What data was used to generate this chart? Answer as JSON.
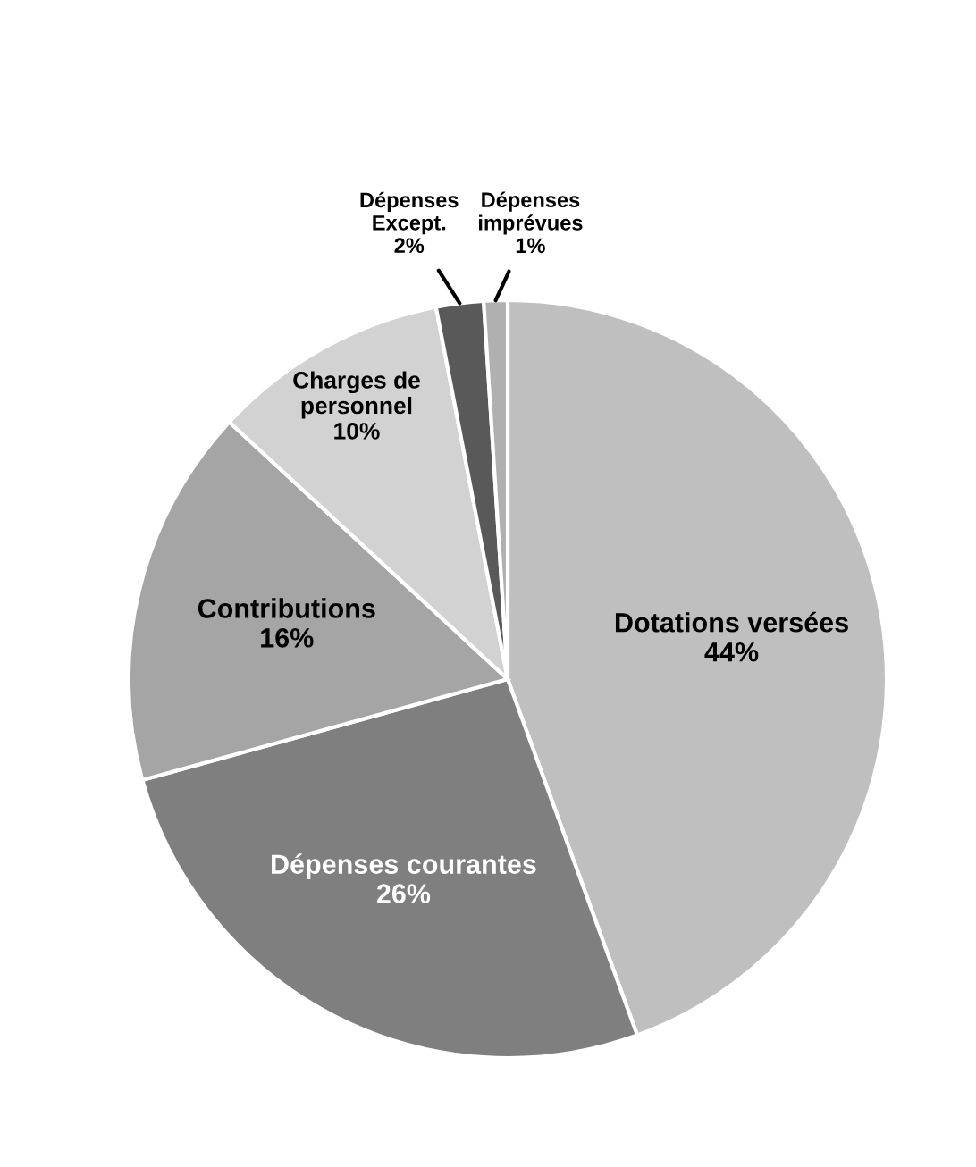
{
  "chart_data": {
    "type": "pie",
    "categories": [
      "Dotations versées",
      "Dépenses courantes",
      "Contributions",
      "Charges de\npersonnel",
      "Dépenses\nExcept.",
      "Dépenses\nimprévues"
    ],
    "values": [
      44,
      26,
      16,
      10,
      2,
      1
    ],
    "colors": [
      "#bfbfbf",
      "#7f7f7f",
      "#a5a5a5",
      "#d2d2d2",
      "#595959",
      "#b0b0b0"
    ],
    "value_labels": [
      "44%",
      "26%",
      "16%",
      "10%",
      "2%",
      "1%"
    ],
    "legend": false
  }
}
